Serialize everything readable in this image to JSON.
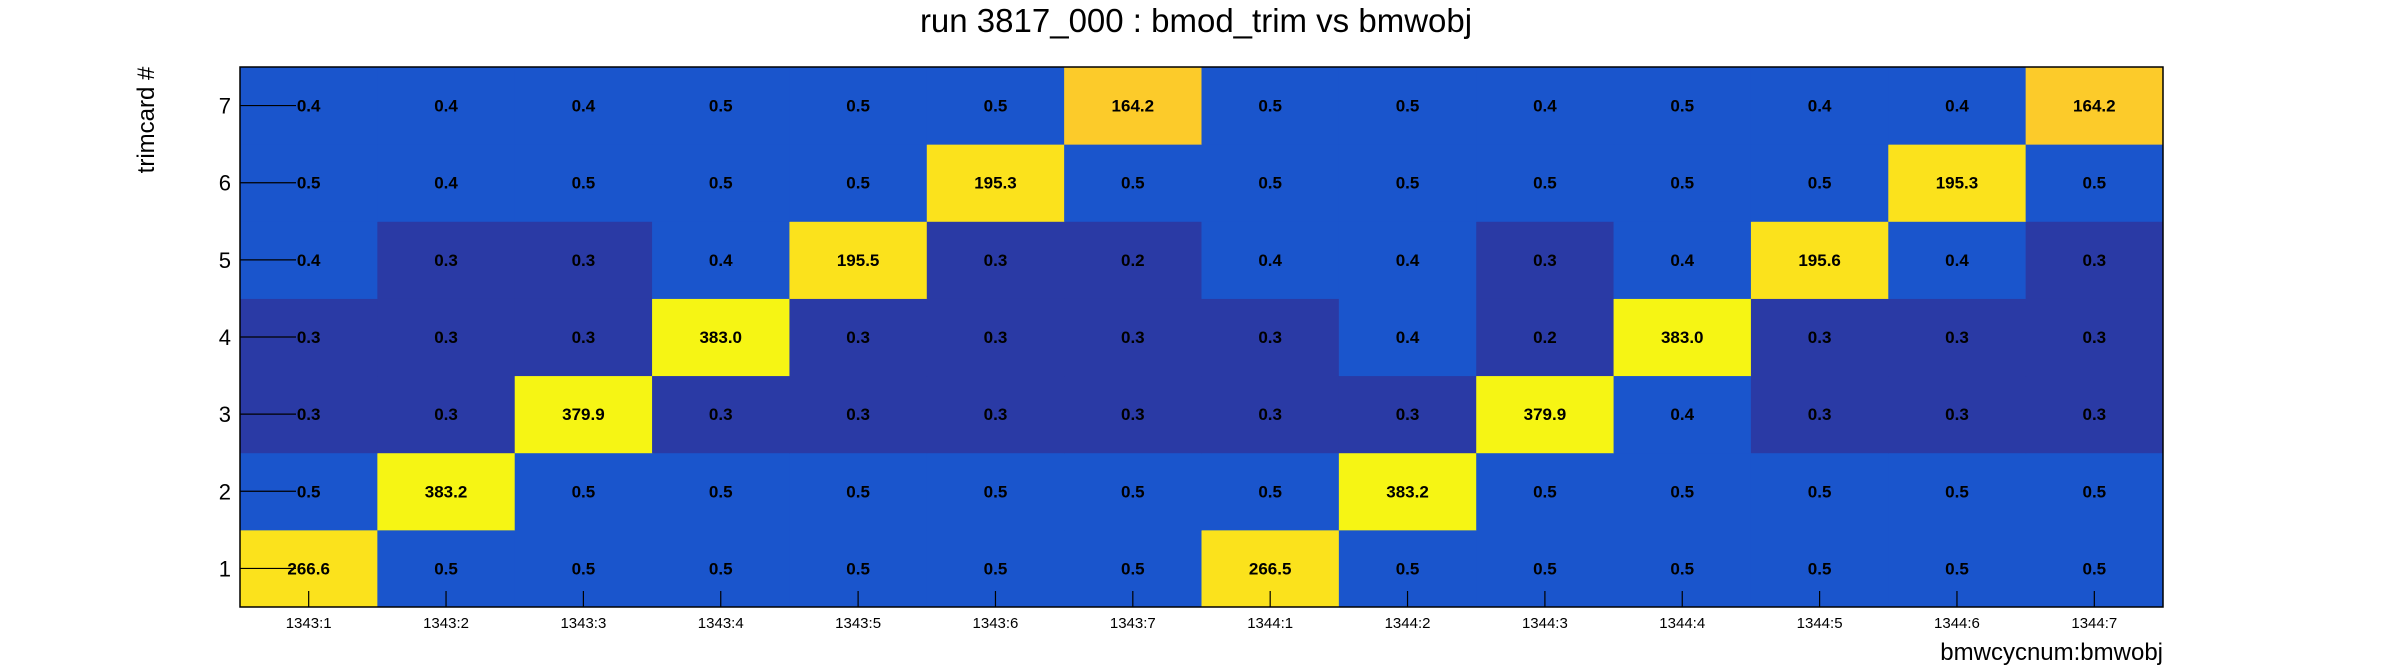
{
  "chart_data": {
    "type": "heatmap",
    "title": "run 3817_000 : bmod_trim vs bmwobj",
    "xlabel": "bmwcycnum:bmwobj",
    "ylabel": "trimcard #",
    "x_categories": [
      "1343:1",
      "1343:2",
      "1343:3",
      "1343:4",
      "1343:5",
      "1343:6",
      "1343:7",
      "1344:1",
      "1344:2",
      "1344:3",
      "1344:4",
      "1344:5",
      "1344:6",
      "1344:7"
    ],
    "y_categories": [
      "1",
      "2",
      "3",
      "4",
      "5",
      "6",
      "7"
    ],
    "values": [
      [
        "266.6",
        "0.5",
        "0.5",
        "0.5",
        "0.5",
        "0.5",
        "0.5",
        "266.5",
        "0.5",
        "0.5",
        "0.5",
        "0.5",
        "0.5",
        "0.5"
      ],
      [
        "0.5",
        "383.2",
        "0.5",
        "0.5",
        "0.5",
        "0.5",
        "0.5",
        "0.5",
        "383.2",
        "0.5",
        "0.5",
        "0.5",
        "0.5",
        "0.5"
      ],
      [
        "0.3",
        "0.3",
        "379.9",
        "0.3",
        "0.3",
        "0.3",
        "0.3",
        "0.3",
        "0.3",
        "379.9",
        "0.4",
        "0.3",
        "0.3",
        "0.3"
      ],
      [
        "0.3",
        "0.3",
        "0.3",
        "383.0",
        "0.3",
        "0.3",
        "0.3",
        "0.3",
        "0.4",
        "0.2",
        "383.0",
        "0.3",
        "0.3",
        "0.3"
      ],
      [
        "0.4",
        "0.3",
        "0.3",
        "0.4",
        "195.5",
        "0.3",
        "0.2",
        "0.4",
        "0.4",
        "0.3",
        "0.4",
        "195.6",
        "0.4",
        "0.3"
      ],
      [
        "0.5",
        "0.4",
        "0.5",
        "0.5",
        "0.5",
        "195.3",
        "0.5",
        "0.5",
        "0.5",
        "0.5",
        "0.5",
        "0.5",
        "195.3",
        "0.5"
      ],
      [
        "0.4",
        "0.4",
        "0.4",
        "0.5",
        "0.5",
        "0.5",
        "164.2",
        "0.5",
        "0.5",
        "0.4",
        "0.5",
        "0.4",
        "0.4",
        "164.2"
      ]
    ],
    "colors": {
      "low": "#2a3aa5",
      "mid": "#1a55cc",
      "med_high": "#fbe21c",
      "high": "#f6f514",
      "orange": "#fccb2a"
    },
    "grid": false,
    "legend": "none"
  }
}
